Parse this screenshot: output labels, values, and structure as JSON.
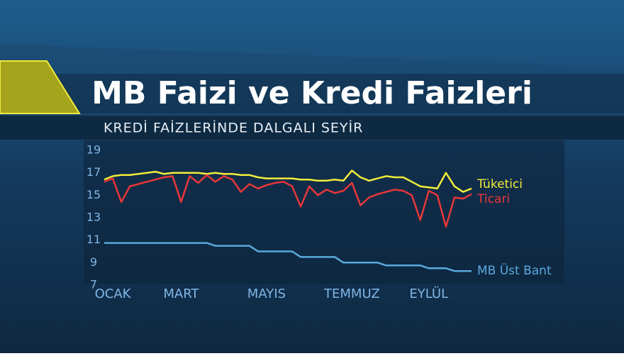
{
  "chart_data": {
    "type": "line",
    "title": "MB Faizi ve Kredi Faizleri",
    "subtitle": "KREDİ FAİZLERİNDE DALGALI SEYİR",
    "categories": [
      null,
      "OCAK",
      null,
      null,
      null,
      null,
      null,
      null,
      null,
      "MART",
      null,
      null,
      null,
      null,
      null,
      null,
      null,
      null,
      null,
      "MAYIS",
      null,
      null,
      null,
      null,
      null,
      null,
      null,
      null,
      null,
      "TEMMUZ",
      null,
      null,
      null,
      null,
      null,
      null,
      null,
      null,
      "EYLÜL",
      null,
      null,
      null,
      null,
      null
    ],
    "ylim": [
      7,
      19
    ],
    "yticks": [
      7,
      9,
      11,
      13,
      15,
      17,
      19
    ],
    "grid": false,
    "series": [
      {
        "name": "Tüketici",
        "color": "#f2ec3a",
        "values": [
          16.4,
          16.7,
          16.8,
          16.8,
          16.9,
          17.0,
          17.1,
          16.9,
          17.0,
          17.0,
          17.0,
          17.0,
          16.9,
          17.0,
          16.9,
          16.9,
          16.8,
          16.8,
          16.6,
          16.5,
          16.5,
          16.5,
          16.5,
          16.4,
          16.4,
          16.3,
          16.3,
          16.4,
          16.3,
          17.2,
          16.6,
          16.3,
          16.5,
          16.7,
          16.6,
          16.6,
          16.2,
          15.8,
          15.7,
          15.6,
          17.0,
          15.8,
          15.3,
          15.6
        ]
      },
      {
        "name": "Ticari",
        "color": "#e8373a",
        "values": [
          16.2,
          16.5,
          14.4,
          15.8,
          16.0,
          16.2,
          16.4,
          16.6,
          16.7,
          14.4,
          16.7,
          16.1,
          16.8,
          16.2,
          16.7,
          16.4,
          15.3,
          16.0,
          15.6,
          15.9,
          16.1,
          16.2,
          15.8,
          14.0,
          15.8,
          15.0,
          15.5,
          15.2,
          15.4,
          16.1,
          14.1,
          14.8,
          15.1,
          15.3,
          15.5,
          15.4,
          15.0,
          12.8,
          15.4,
          15.0,
          12.2,
          14.8,
          14.7,
          15.1
        ]
      },
      {
        "name": "MB Üst Bant",
        "color": "#5aa9dc",
        "values": [
          10.75,
          10.75,
          10.75,
          10.75,
          10.75,
          10.75,
          10.75,
          10.75,
          10.75,
          10.75,
          10.75,
          10.75,
          10.75,
          10.5,
          10.5,
          10.5,
          10.5,
          10.5,
          10.0,
          10.0,
          10.0,
          10.0,
          10.0,
          9.5,
          9.5,
          9.5,
          9.5,
          9.5,
          9.0,
          9.0,
          9.0,
          9.0,
          9.0,
          8.75,
          8.75,
          8.75,
          8.75,
          8.75,
          8.5,
          8.5,
          8.5,
          8.25,
          8.25,
          8.25
        ]
      }
    ]
  }
}
